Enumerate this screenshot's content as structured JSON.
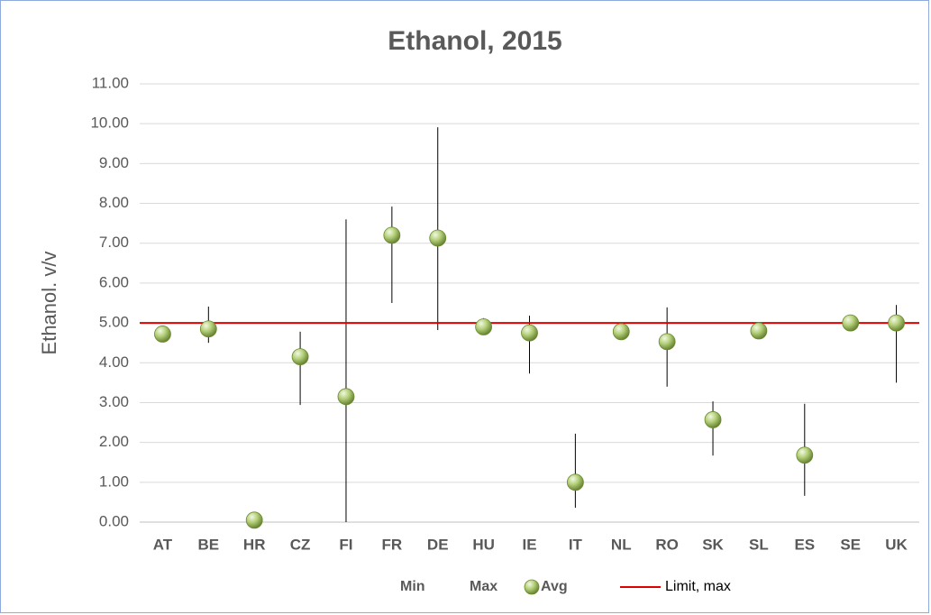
{
  "chart_data": {
    "type": "hilo",
    "title": "Ethanol, 2015",
    "y_label": "Ethanol. v/v",
    "categories": [
      "AT",
      "BE",
      "HR",
      "CZ",
      "FI",
      "FR",
      "DE",
      "HU",
      "IE",
      "IT",
      "NL",
      "RO",
      "SK",
      "SL",
      "ES",
      "SE",
      "UK"
    ],
    "series": [
      {
        "name": "Min",
        "values": [
          4.65,
          4.5,
          0,
          2.94,
          0,
          5.5,
          4.82,
          4.85,
          3.73,
          0.36,
          4.7,
          3.4,
          1.67,
          4.75,
          0.66,
          4.95,
          3.5
        ]
      },
      {
        "name": "Max",
        "values": [
          4.8,
          5.41,
          0.1,
          4.78,
          7.6,
          7.92,
          9.91,
          5.12,
          5.18,
          2.22,
          4.85,
          5.39,
          3.03,
          4.85,
          2.97,
          5.05,
          5.45
        ]
      },
      {
        "name": "Avg",
        "color": "#9bbb59",
        "values": [
          4.72,
          4.85,
          0.05,
          4.15,
          3.15,
          7.2,
          7.13,
          4.9,
          4.75,
          1.0,
          4.78,
          4.53,
          2.57,
          4.8,
          1.68,
          5.0,
          5.0
        ]
      }
    ],
    "limit": {
      "name": "Limit, max",
      "value": 5,
      "color": "#e00000"
    },
    "ylim": [
      0,
      11
    ],
    "yticks": [
      {
        "value": 0,
        "label": "0.00"
      },
      {
        "value": 1,
        "label": "1.00"
      },
      {
        "value": 2,
        "label": "2.00"
      },
      {
        "value": 3,
        "label": "3.00"
      },
      {
        "value": 4,
        "label": "4.00"
      },
      {
        "value": 5,
        "label": "5.00"
      },
      {
        "value": 6,
        "label": "6.00"
      },
      {
        "value": 7,
        "label": "7.00"
      },
      {
        "value": 8,
        "label": "8.00"
      },
      {
        "value": 9,
        "label": "9.00"
      },
      {
        "value": 10,
        "label": "10.00"
      },
      {
        "value": 11,
        "label": "11.00"
      }
    ],
    "grid": true
  }
}
